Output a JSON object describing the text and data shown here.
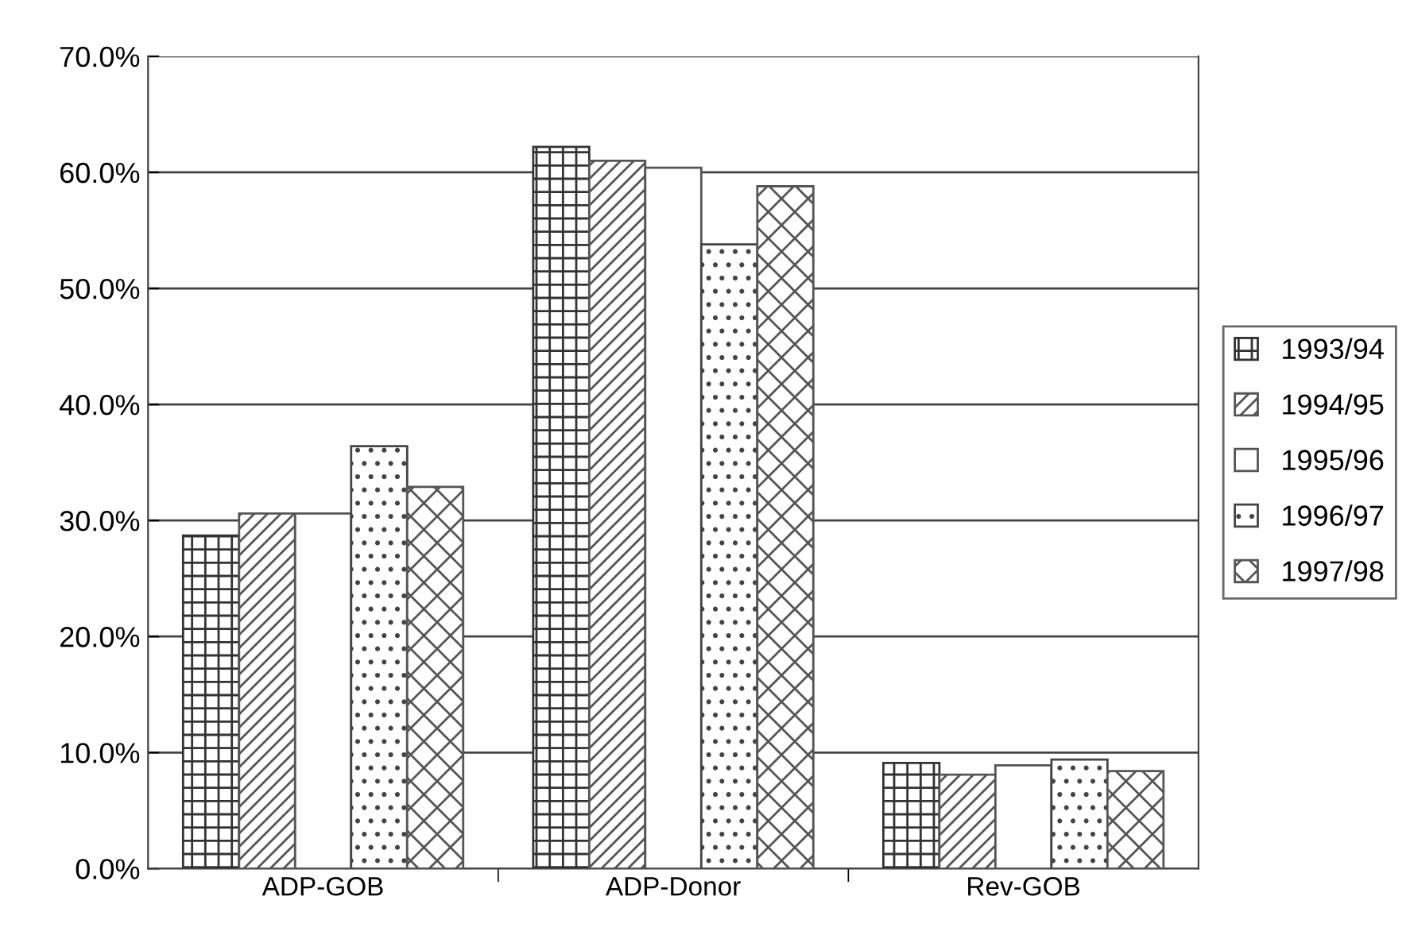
{
  "chart_data": {
    "type": "bar",
    "categories": [
      "ADP-GOB",
      "ADP-Donor",
      "Rev-GOB"
    ],
    "series": [
      {
        "name": "1993/94",
        "color": "#333333",
        "values": [
          28.7,
          62.2,
          9.1
        ]
      },
      {
        "name": "1994/95",
        "color": "#555555",
        "values": [
          30.6,
          61.0,
          8.1
        ]
      },
      {
        "name": "1995/96",
        "color": "#555555",
        "values": [
          30.6,
          60.4,
          8.9
        ]
      },
      {
        "name": "1996/97",
        "color": "#444444",
        "values": [
          36.4,
          53.8,
          9.4
        ]
      },
      {
        "name": "1997/98",
        "color": "#555555",
        "values": [
          32.9,
          58.8,
          8.4
        ]
      }
    ],
    "ylim": [
      0,
      70
    ],
    "yticks": [
      {
        "value": 0,
        "label": "0.0%"
      },
      {
        "value": 10,
        "label": "10.0%"
      },
      {
        "value": 20,
        "label": "20.0%"
      },
      {
        "value": 30,
        "label": "30.0%"
      },
      {
        "value": 40,
        "label": "40.0%"
      },
      {
        "value": 50,
        "label": "50.0%"
      },
      {
        "value": 60,
        "label": "60.0%"
      },
      {
        "value": 70,
        "label": "70.0%"
      }
    ],
    "grid": "y",
    "legend": "right"
  }
}
